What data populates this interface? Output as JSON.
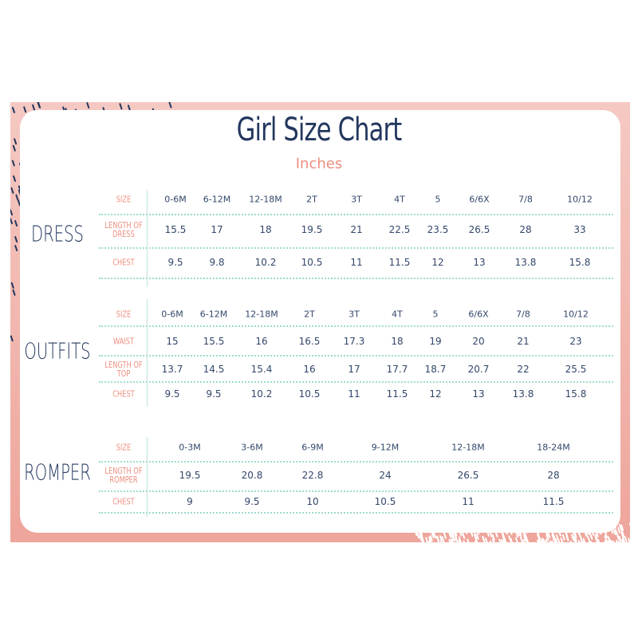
{
  "title": "Girl Size Chart",
  "unit": "Inches",
  "colors": {
    "navy": "#23375e",
    "salmon": "#ee8f80",
    "frame": "#f0aaa0",
    "divider": "#9edcd0"
  },
  "sections": [
    {
      "name": "DRESS",
      "sizes": [
        "0-6M",
        "6-12M",
        "12-18M",
        "2T",
        "3T",
        "4T",
        "5",
        "6/6X",
        "7/8",
        "10/12"
      ],
      "rows": [
        {
          "label": "SIZE",
          "values": [
            "0-6M",
            "6-12M",
            "12-18M",
            "2T",
            "3T",
            "4T",
            "5",
            "6/6X",
            "7/8",
            "10/12"
          ]
        },
        {
          "label": "LENGTH OF DRESS",
          "values": [
            "15.5",
            "17",
            "18",
            "19.5",
            "21",
            "22.5",
            "23.5",
            "26.5",
            "28",
            "33"
          ]
        },
        {
          "label": "CHEST",
          "values": [
            "9.5",
            "9.8",
            "10.2",
            "10.5",
            "11",
            "11.5",
            "12",
            "13",
            "13.8",
            "15.8"
          ]
        }
      ]
    },
    {
      "name": "OUTFITS",
      "rows": [
        {
          "label": "SIZE",
          "values": [
            "0-6M",
            "6-12M",
            "12-18M",
            "2T",
            "3T",
            "4T",
            "5",
            "6/6X",
            "7/8",
            "10/12"
          ]
        },
        {
          "label": "WAIST",
          "values": [
            "15",
            "15.5",
            "16",
            "16.5",
            "17.3",
            "18",
            "19",
            "20",
            "21",
            "23"
          ]
        },
        {
          "label": "LENGTH OF TOP",
          "values": [
            "13.7",
            "14.5",
            "15.4",
            "16",
            "17",
            "17.7",
            "18.7",
            "20.7",
            "22",
            "25.5"
          ]
        },
        {
          "label": "CHEST",
          "values": [
            "9.5",
            "9.5",
            "10.2",
            "10.5",
            "11",
            "11.5",
            "12",
            "13",
            "13.8",
            "15.8"
          ]
        }
      ]
    },
    {
      "name": "ROMPER",
      "rows": [
        {
          "label": "SIZE",
          "values": [
            "0-3M",
            "3-6M",
            "6-9M",
            "9-12M",
            "12-18M",
            "18-24M"
          ]
        },
        {
          "label": "LENGTH OF ROMPER",
          "values": [
            "19.5",
            "20.8",
            "22.8",
            "24",
            "26.5",
            "28"
          ]
        },
        {
          "label": "CHEST",
          "values": [
            "9",
            "9.5",
            "10",
            "10.5",
            "11",
            "11.5"
          ]
        }
      ]
    }
  ]
}
